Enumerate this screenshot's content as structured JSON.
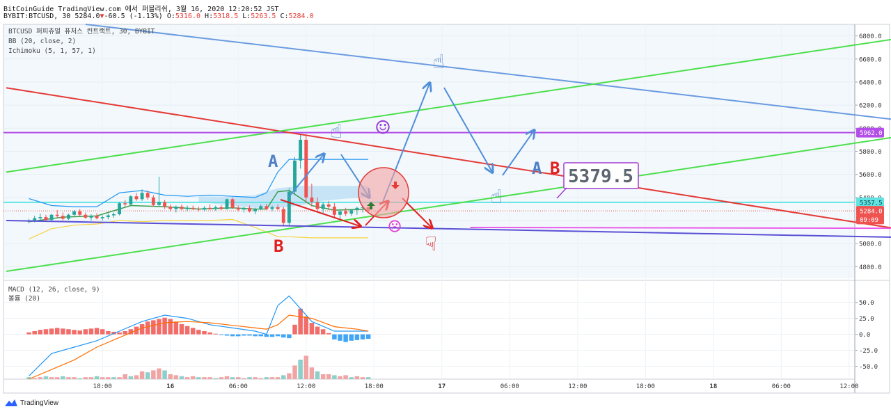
{
  "header": {
    "line1": "BitCoinGuide TradingView.com 에서 퍼블리쉬, 3월 16, 2020 12:20:52 JST",
    "symbol": "BYBIT:BTCUSD, 30",
    "price": "5284.0",
    "change": "-60.5 (-1.13%)",
    "ohlc": {
      "o": "5316.0",
      "h": "5318.5",
      "l": "5263.5",
      "c": "5284.0"
    }
  },
  "legend": {
    "title": "BTCUSD 퍼피츄얼 퓨처스 컨트랙트, 30, BYBIT",
    "bb": "BB (20, close, 2)",
    "ichimoku": "Ichimoku (5, 1, 57, 1)",
    "macd": "MACD (12, 26, close, 9)",
    "volume": "볼륨 (20)"
  },
  "footer": {
    "brand": "TradingView"
  },
  "colors": {
    "up": "#26a69a",
    "down": "#ef5350",
    "green_channel": "#4cdf4c",
    "blue_channel": "#6a9be0",
    "red_trend": "#e53935",
    "purple_level": "#b34ee8",
    "cyan_level": "#61e3e3",
    "magenta_level": "#ea5bea",
    "navy_trend": "#5a4fd6",
    "arrow_blue": "#4f8ed9",
    "arrow_red": "#e02020"
  },
  "annotations": {
    "a1": "A",
    "a2": "A",
    "b1": "B",
    "b2": "B",
    "callout": "5379.5",
    "hand_up": "☝",
    "hand_down": "☟",
    "smile": "☺",
    "frown": "☹"
  },
  "chart_data": [
    {
      "type": "candlestick",
      "title": "BTCUSD 퍼피츄얼 퓨처스 컨트랙트, 30, BYBIT",
      "ylim": [
        4700,
        6900
      ],
      "y_ticks": [
        6800,
        6600,
        6400,
        6200,
        6000,
        5800,
        5600,
        5400,
        5200,
        5000,
        4800
      ],
      "x_ticks": [
        {
          "label": "18:00",
          "i": 17
        },
        {
          "label": "16",
          "i": 29
        },
        {
          "label": "06:00",
          "i": 41
        },
        {
          "label": "12:00",
          "i": 53
        },
        {
          "label": "18:00",
          "i": 65
        },
        {
          "label": "17",
          "i": 77
        },
        {
          "label": "06:00",
          "i": 89
        },
        {
          "label": "12:00",
          "i": 101
        },
        {
          "label": "18:00",
          "i": 113
        },
        {
          "label": "18",
          "i": 125
        },
        {
          "label": "06:00",
          "i": 137
        },
        {
          "label": "12:00",
          "i": 149
        }
      ],
      "x_range": [
        -0.5,
        150
      ],
      "price_labels": [
        {
          "value": 5962.0,
          "text": "5962.0",
          "color": "#b34ee8"
        },
        {
          "value": 5357.5,
          "text": "5357.5",
          "color": "#61e3e3"
        },
        {
          "value": 5284.0,
          "text": "5284.0",
          "color": "#ef5350"
        },
        {
          "value": 5210,
          "text": "09:09",
          "color": "#ef5350"
        }
      ],
      "levels": [
        {
          "name": "purple",
          "value": 5962,
          "color": "#b34ee8"
        },
        {
          "name": "cyan",
          "value": 5357.5,
          "color": "#61e3e3"
        },
        {
          "name": "last",
          "value": 5284,
          "color": "#ef5350",
          "dotted": true
        }
      ],
      "candles": [
        [
          5190,
          5215,
          5175,
          5200
        ],
        [
          5200,
          5240,
          5185,
          5220
        ],
        [
          5220,
          5260,
          5205,
          5230
        ],
        [
          5230,
          5250,
          5195,
          5205
        ],
        [
          5205,
          5260,
          5195,
          5250
        ],
        [
          5250,
          5290,
          5225,
          5240
        ],
        [
          5240,
          5270,
          5200,
          5215
        ],
        [
          5215,
          5260,
          5205,
          5250
        ],
        [
          5250,
          5290,
          5235,
          5280
        ],
        [
          5280,
          5300,
          5240,
          5250
        ],
        [
          5250,
          5270,
          5215,
          5225
        ],
        [
          5225,
          5255,
          5200,
          5240
        ],
        [
          5240,
          5265,
          5210,
          5220
        ],
        [
          5220,
          5245,
          5200,
          5230
        ],
        [
          5230,
          5260,
          5210,
          5245
        ],
        [
          5245,
          5270,
          5225,
          5255
        ],
        [
          5255,
          5360,
          5245,
          5350
        ],
        [
          5350,
          5380,
          5320,
          5340
        ],
        [
          5340,
          5420,
          5330,
          5410
        ],
        [
          5410,
          5440,
          5370,
          5385
        ],
        [
          5385,
          5470,
          5370,
          5440
        ],
        [
          5440,
          5460,
          5380,
          5400
        ],
        [
          5400,
          5420,
          5320,
          5335
        ],
        [
          5335,
          5580,
          5320,
          5360
        ],
        [
          5360,
          5380,
          5300,
          5320
        ],
        [
          5320,
          5340,
          5280,
          5300
        ],
        [
          5300,
          5330,
          5270,
          5320
        ],
        [
          5320,
          5340,
          5290,
          5300
        ],
        [
          5300,
          5330,
          5280,
          5310
        ],
        [
          5310,
          5330,
          5290,
          5300
        ],
        [
          5300,
          5320,
          5280,
          5295
        ],
        [
          5295,
          5325,
          5280,
          5310
        ],
        [
          5310,
          5340,
          5290,
          5300
        ],
        [
          5300,
          5330,
          5285,
          5315
        ],
        [
          5315,
          5335,
          5290,
          5300
        ],
        [
          5300,
          5390,
          5295,
          5385
        ],
        [
          5385,
          5400,
          5300,
          5310
        ],
        [
          5310,
          5330,
          5280,
          5295
        ],
        [
          5295,
          5320,
          5270,
          5310
        ],
        [
          5310,
          5330,
          5270,
          5280
        ],
        [
          5280,
          5310,
          5255,
          5300
        ],
        [
          5300,
          5340,
          5290,
          5325
        ],
        [
          5325,
          5345,
          5290,
          5300
        ],
        [
          5300,
          5330,
          5280,
          5315
        ],
        [
          5315,
          5340,
          5290,
          5300
        ],
        [
          5300,
          5320,
          5150,
          5180
        ],
        [
          5180,
          5480,
          5160,
          5450
        ],
        [
          5450,
          5750,
          5420,
          5720
        ],
        [
          5720,
          5950,
          5650,
          5900
        ],
        [
          5900,
          5950,
          5350,
          5400
        ],
        [
          5400,
          5520,
          5320,
          5360
        ],
        [
          5360,
          5400,
          5280,
          5300
        ],
        [
          5300,
          5360,
          5260,
          5340
        ],
        [
          5340,
          5370,
          5290,
          5320
        ],
        [
          5320,
          5350,
          5230,
          5250
        ],
        [
          5250,
          5300,
          5200,
          5280
        ],
        [
          5280,
          5310,
          5240,
          5260
        ],
        [
          5260,
          5300,
          5240,
          5290
        ],
        [
          5290,
          5320,
          5250,
          5310
        ],
        [
          5310,
          5330,
          5270,
          5316
        ],
        [
          5316,
          5318.5,
          5263.5,
          5284
        ]
      ],
      "candle_x_start": 4,
      "bb_upper": {
        "x": [
          4,
          8,
          12,
          16,
          20,
          24,
          28,
          32,
          36,
          40,
          44,
          46,
          48,
          50,
          54,
          58,
          62,
          64
        ],
        "y": [
          5390,
          5330,
          5320,
          5320,
          5440,
          5460,
          5420,
          5410,
          5420,
          5410,
          5400,
          5440,
          5620,
          5730,
          5730,
          5730,
          5730,
          5730
        ]
      },
      "bb_lower": {
        "x": [
          4,
          8,
          12,
          16,
          20,
          24,
          28,
          32,
          36,
          40,
          44,
          46,
          48,
          50,
          54,
          58,
          62,
          64
        ],
        "y": [
          5040,
          5130,
          5160,
          5170,
          5200,
          5190,
          5200,
          5200,
          5200,
          5210,
          5140,
          5100,
          5060,
          5060,
          5050,
          5050,
          5050,
          5050
        ]
      },
      "tenkan": {
        "x": [
          4,
          10,
          16,
          22,
          28,
          34,
          40,
          44,
          46,
          48,
          50,
          54,
          58,
          64
        ],
        "y": [
          5190,
          5230,
          5240,
          5330,
          5320,
          5300,
          5310,
          5300,
          5300,
          5450,
          5460,
          5330,
          5290,
          5300
        ]
      },
      "cloud": {
        "x": [
          34,
          40,
          44,
          48,
          52,
          56,
          60,
          64
        ],
        "top": [
          5410,
          5405,
          5420,
          5480,
          5500,
          5500,
          5500,
          5500
        ],
        "bottom": [
          5360,
          5330,
          5310,
          5310,
          5330,
          5370,
          5390,
          5400
        ]
      },
      "trendlines": [
        {
          "name": "upper-blue",
          "color": "#6a9be0",
          "x": [
            14,
            196
          ],
          "y": [
            6900,
            5850
          ]
        },
        {
          "name": "red-trend",
          "color": "#e53935",
          "x": [
            0,
            196
          ],
          "y": [
            6350,
            4830
          ]
        },
        {
          "name": "green-upper",
          "color": "#4cdf4c",
          "x": [
            0,
            158
          ],
          "y": [
            5620,
            6780
          ]
        },
        {
          "name": "green-lower",
          "color": "#4cdf4c",
          "x": [
            0,
            158
          ],
          "y": [
            4760,
            5930
          ]
        },
        {
          "name": "navy-trend",
          "color": "#5a4fd6",
          "x": [
            0,
            196
          ],
          "y": [
            5200,
            5020
          ]
        },
        {
          "name": "magenta-level",
          "color": "#ea5bea",
          "x": [
            82,
            196
          ],
          "y": [
            5140,
            5130
          ]
        }
      ]
    },
    {
      "type": "macd",
      "title": "MACD (12, 26, close, 9)",
      "ylim": [
        -70,
        80
      ],
      "y_ticks": [
        50,
        25,
        0,
        -25,
        -50
      ],
      "x_range": [
        -0.5,
        150
      ],
      "histogram": {
        "x_start": 4,
        "values": [
          3,
          5,
          7,
          8,
          9,
          10,
          9,
          8,
          7,
          6,
          8,
          9,
          10,
          8,
          5,
          4,
          3,
          5,
          8,
          12,
          16,
          20,
          22,
          24,
          26,
          24,
          20,
          16,
          13,
          10,
          7,
          5,
          3,
          1,
          -1,
          -2,
          -3,
          -3,
          -2,
          -2,
          -3,
          -3,
          -4,
          -4,
          -3,
          -5,
          -6,
          15,
          40,
          28,
          18,
          12,
          8,
          2,
          -8,
          -10,
          -12,
          -10,
          -9,
          -8,
          -7
        ]
      },
      "macd": {
        "x": [
          4,
          8,
          12,
          16,
          20,
          24,
          28,
          32,
          36,
          40,
          44,
          46,
          48,
          50,
          54,
          58,
          62,
          64
        ],
        "y": [
          -65,
          -30,
          -20,
          -10,
          5,
          20,
          30,
          25,
          15,
          10,
          5,
          0,
          45,
          60,
          20,
          5,
          5,
          5
        ]
      },
      "signal": {
        "x": [
          4,
          8,
          12,
          16,
          20,
          24,
          28,
          32,
          36,
          40,
          44,
          46,
          48,
          50,
          54,
          58,
          62,
          64
        ],
        "y": [
          -70,
          -55,
          -40,
          -20,
          -5,
          10,
          18,
          20,
          18,
          14,
          10,
          8,
          15,
          30,
          25,
          12,
          8,
          5
        ]
      },
      "volume": {
        "x_start": 4,
        "values": [
          2,
          1,
          2,
          3,
          2,
          2,
          3,
          2,
          2,
          1,
          2,
          2,
          3,
          2,
          2,
          2,
          2,
          5,
          3,
          4,
          8,
          7,
          9,
          11,
          9,
          5,
          4,
          3,
          2,
          3,
          2,
          2,
          2,
          1,
          2,
          3,
          2,
          2,
          1,
          2,
          2,
          1,
          2,
          2,
          2,
          4,
          6,
          14,
          20,
          24,
          12,
          8,
          5,
          5,
          4,
          3,
          4,
          2,
          3,
          2,
          2
        ]
      }
    }
  ]
}
